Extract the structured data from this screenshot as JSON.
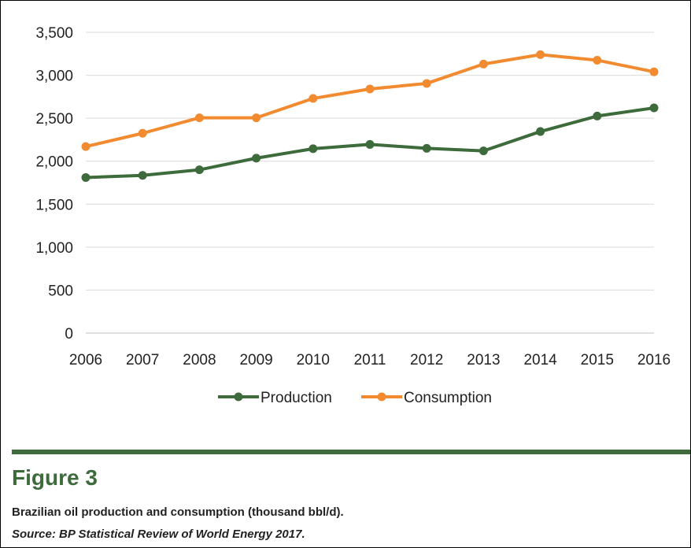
{
  "chart_data": {
    "type": "line",
    "x": [
      "2006",
      "2007",
      "2008",
      "2009",
      "2010",
      "2011",
      "2012",
      "2013",
      "2014",
      "2015",
      "2016"
    ],
    "ylim": [
      0,
      3500
    ],
    "yticks": [
      "0",
      "500",
      "1,000",
      "1,500",
      "2,000",
      "2,500",
      "3,000",
      "3,500"
    ],
    "ytick_values": [
      0,
      500,
      1000,
      1500,
      2000,
      2500,
      3000,
      3500
    ],
    "grid": "horizontal",
    "legend_position": "bottom",
    "series": [
      {
        "name": "Production",
        "color": "#3d6b3b",
        "values": [
          1810,
          1835,
          1900,
          2035,
          2145,
          2195,
          2150,
          2120,
          2345,
          2525,
          2620
        ]
      },
      {
        "name": "Consumption",
        "color": "#f28a30",
        "values": [
          2170,
          2325,
          2505,
          2505,
          2730,
          2840,
          2905,
          3130,
          3240,
          3175,
          3040
        ]
      }
    ]
  },
  "figure": {
    "title": "Figure 3",
    "caption": "Brazilian oil production and consumption (thousand bbl/d).",
    "source": "Source: BP Statistical Review of World Energy 2017."
  }
}
